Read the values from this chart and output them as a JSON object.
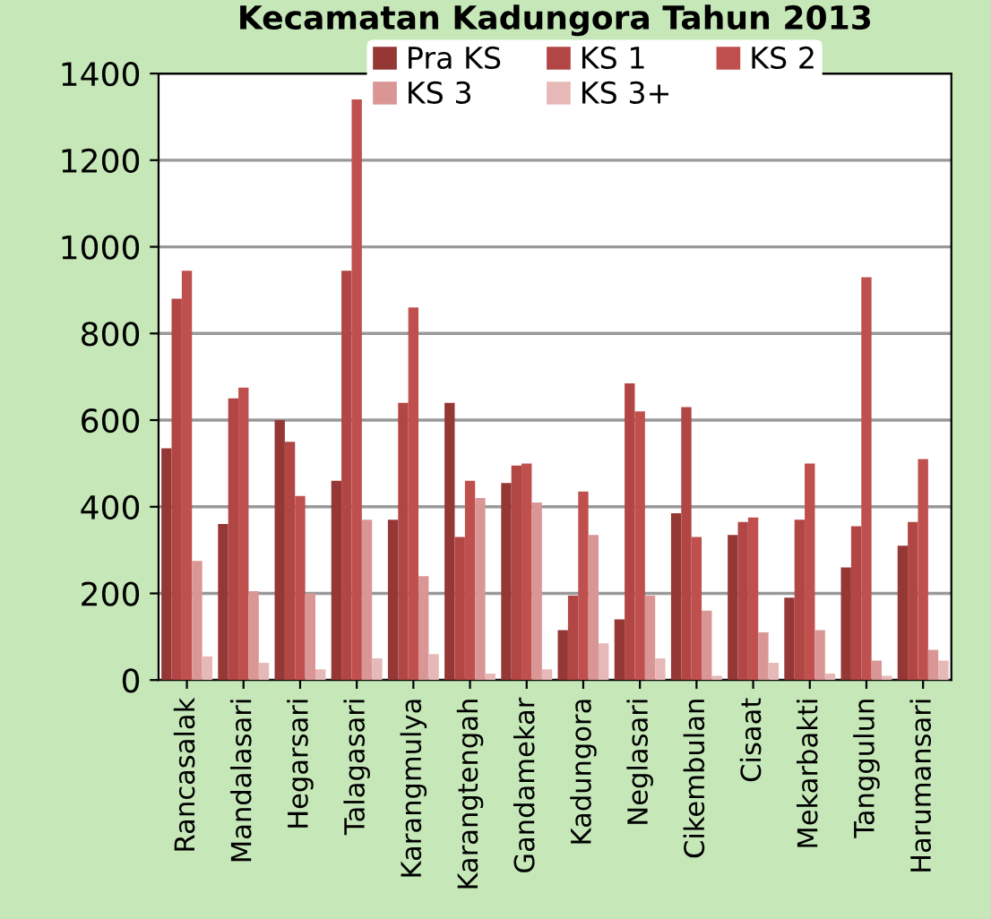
{
  "chart_data": {
    "type": "bar",
    "title": "Kecamatan Kadungora Tahun 2013",
    "categories": [
      "Rancasalak",
      "Mandalasari",
      "Hegarsari",
      "Talagasari",
      "Karangmulya",
      "Karangtengah",
      "Gandamekar",
      "Kadungora",
      "Neglasari",
      "Cikembulan",
      "Cisaat",
      "Mekarbakti",
      "Tanggulun",
      "Harumansari"
    ],
    "series": [
      {
        "name": "Pra KS",
        "color": "#953735",
        "values": [
          535,
          360,
          600,
          460,
          370,
          640,
          455,
          115,
          140,
          385,
          335,
          190,
          260,
          310
        ]
      },
      {
        "name": "KS 1",
        "color": "#b24644",
        "values": [
          880,
          650,
          550,
          945,
          640,
          330,
          495,
          195,
          685,
          630,
          365,
          370,
          355,
          365
        ]
      },
      {
        "name": "KS 2",
        "color": "#c0504d",
        "values": [
          945,
          675,
          425,
          1340,
          860,
          460,
          500,
          435,
          620,
          330,
          375,
          500,
          930,
          510
        ]
      },
      {
        "name": "KS 3",
        "color": "#d99694",
        "values": [
          275,
          205,
          200,
          370,
          240,
          420,
          410,
          335,
          195,
          160,
          110,
          115,
          45,
          70
        ]
      },
      {
        "name": "KS 3+",
        "color": "#e6b9b8",
        "values": [
          55,
          40,
          25,
          50,
          60,
          15,
          25,
          85,
          50,
          10,
          40,
          15,
          10,
          45
        ]
      }
    ],
    "ylim": [
      0,
      1400
    ],
    "yticks": [
      0,
      200,
      400,
      600,
      800,
      1000,
      1200,
      1400
    ],
    "grid": "y",
    "legend": "top"
  }
}
